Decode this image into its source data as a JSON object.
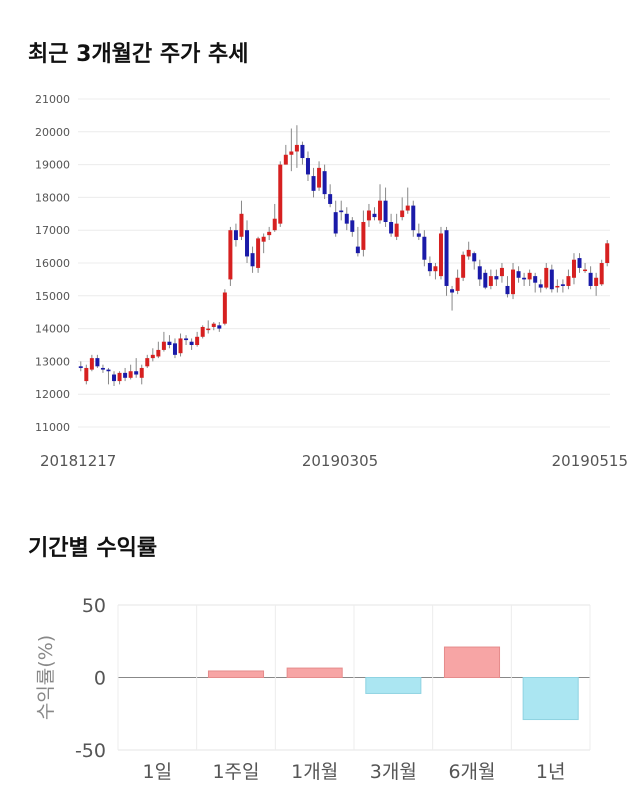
{
  "sections": {
    "price_title": "최근 3개월간 주가 추세",
    "returns_title": "기간별 수익률"
  },
  "chart_data": [
    {
      "type": "candlestick",
      "title": "최근 3개월간 주가 추세",
      "ylim": [
        11000,
        21000
      ],
      "y_ticks": [
        11000,
        12000,
        13000,
        14000,
        15000,
        16000,
        17000,
        18000,
        19000,
        20000,
        21000
      ],
      "x_labels": [
        "20181217",
        "20190305",
        "20190515"
      ],
      "grid": true,
      "colors": {
        "up": "#d62020",
        "down": "#1a1aa8",
        "wick": "#888888"
      },
      "candles": [
        [
          12850,
          12800,
          13000,
          12700
        ],
        [
          12400,
          12800,
          12900,
          12300
        ],
        [
          12750,
          13100,
          13200,
          12700
        ],
        [
          13100,
          12850,
          13200,
          12800
        ],
        [
          12800,
          12750,
          12900,
          12650
        ],
        [
          12750,
          12700,
          12800,
          12300
        ],
        [
          12600,
          12400,
          12700,
          12250
        ],
        [
          12400,
          12650,
          12700,
          12300
        ],
        [
          12650,
          12500,
          12800,
          12400
        ],
        [
          12500,
          12700,
          12900,
          12450
        ],
        [
          12700,
          12600,
          13100,
          12500
        ],
        [
          12500,
          12800,
          12900,
          12300
        ],
        [
          12850,
          13100,
          13200,
          12800
        ],
        [
          13100,
          13200,
          13400,
          13000
        ],
        [
          13150,
          13350,
          13600,
          13100
        ],
        [
          13350,
          13600,
          13900,
          13300
        ],
        [
          13600,
          13500,
          13800,
          13400
        ],
        [
          13550,
          13200,
          13700,
          13100
        ],
        [
          13250,
          13700,
          13850,
          13150
        ],
        [
          13700,
          13650,
          13800,
          13500
        ],
        [
          13600,
          13500,
          13700,
          13350
        ],
        [
          13500,
          13750,
          13900,
          13450
        ],
        [
          13750,
          14050,
          14100,
          13700
        ],
        [
          14000,
          14000,
          14250,
          13850
        ],
        [
          14050,
          14150,
          14200,
          13950
        ],
        [
          14100,
          14000,
          14200,
          13900
        ],
        [
          14150,
          15100,
          15200,
          14100
        ],
        [
          15500,
          17000,
          17100,
          15300
        ],
        [
          17000,
          16700,
          17200,
          16500
        ],
        [
          16800,
          17500,
          17900,
          16700
        ],
        [
          17000,
          16200,
          17300,
          16000
        ],
        [
          16300,
          15900,
          16500,
          15700
        ],
        [
          15850,
          16750,
          16800,
          15700
        ],
        [
          16650,
          16800,
          16900,
          16300
        ],
        [
          16850,
          16950,
          17100,
          16700
        ],
        [
          17000,
          17350,
          17800,
          16950
        ],
        [
          17200,
          19000,
          19100,
          17100
        ],
        [
          19000,
          19300,
          19600,
          19000
        ],
        [
          19300,
          19400,
          20100,
          18800
        ],
        [
          19400,
          19600,
          20200,
          18900
        ],
        [
          19600,
          19200,
          19700,
          19000
        ],
        [
          19200,
          18700,
          19400,
          18500
        ],
        [
          18650,
          18200,
          18900,
          18000
        ],
        [
          18300,
          18900,
          19100,
          18200
        ],
        [
          18800,
          18100,
          19000,
          17950
        ],
        [
          18100,
          17800,
          18400,
          17700
        ],
        [
          17550,
          16900,
          17900,
          16800
        ],
        [
          17600,
          17550,
          17900,
          17300
        ],
        [
          17500,
          17200,
          17700,
          17000
        ],
        [
          17300,
          16950,
          17400,
          16800
        ],
        [
          16500,
          16300,
          17100,
          16200
        ],
        [
          16400,
          17250,
          17600,
          16200
        ],
        [
          17300,
          17600,
          17800,
          17100
        ],
        [
          17500,
          17400,
          17700,
          17300
        ],
        [
          17300,
          17900,
          18400,
          17200
        ],
        [
          17900,
          17250,
          18300,
          17100
        ],
        [
          17250,
          16900,
          17500,
          16800
        ],
        [
          16800,
          17200,
          17500,
          16700
        ],
        [
          17400,
          17600,
          18000,
          17300
        ],
        [
          17600,
          17750,
          18300,
          17500
        ],
        [
          17750,
          17000,
          17900,
          16800
        ],
        [
          16900,
          16800,
          17200,
          16700
        ],
        [
          16800,
          16100,
          17000,
          15900
        ],
        [
          16000,
          15750,
          16200,
          15600
        ],
        [
          15750,
          15900,
          16000,
          15500
        ],
        [
          15600,
          16900,
          17100,
          15500
        ],
        [
          17000,
          15300,
          17100,
          15000
        ],
        [
          15200,
          15100,
          15300,
          14550
        ],
        [
          15150,
          15550,
          15800,
          15050
        ],
        [
          15550,
          16250,
          16350,
          15450
        ],
        [
          16200,
          16400,
          16650,
          16100
        ],
        [
          16300,
          16050,
          16350,
          15800
        ],
        [
          15900,
          15500,
          16100,
          15300
        ],
        [
          15700,
          15250,
          15800,
          15200
        ],
        [
          15300,
          15600,
          15800,
          15200
        ],
        [
          15600,
          15500,
          15800,
          15300
        ],
        [
          15600,
          15850,
          16000,
          15400
        ],
        [
          15300,
          15050,
          15600,
          14950
        ],
        [
          15050,
          15800,
          16000,
          14900
        ],
        [
          15750,
          15550,
          15900,
          15400
        ],
        [
          15550,
          15500,
          15700,
          15300
        ],
        [
          15500,
          15700,
          15800,
          15300
        ],
        [
          15600,
          15400,
          15700,
          15100
        ],
        [
          15350,
          15250,
          15500,
          15100
        ],
        [
          15250,
          15850,
          16000,
          15200
        ],
        [
          15800,
          15200,
          15950,
          15100
        ],
        [
          15300,
          15300,
          15500,
          15100
        ],
        [
          15350,
          15300,
          15500,
          15100
        ],
        [
          15300,
          15600,
          15800,
          15200
        ],
        [
          15550,
          16100,
          16300,
          15350
        ],
        [
          16150,
          15850,
          16300,
          15700
        ],
        [
          15800,
          15800,
          16000,
          15700
        ],
        [
          15700,
          15300,
          15900,
          15200
        ],
        [
          15300,
          15550,
          15700,
          15000
        ],
        [
          15350,
          16000,
          16100,
          15300
        ],
        [
          16000,
          16600,
          16700,
          15900
        ]
      ]
    },
    {
      "type": "bar",
      "title": "기간별 수익률",
      "ylabel": "수익률(%)",
      "ylim": [
        -50,
        50
      ],
      "y_ticks": [
        50,
        0,
        -50
      ],
      "categories": [
        "1일",
        "1주일",
        "1개월",
        "3개월",
        "6개월",
        "1년"
      ],
      "values": [
        0,
        4.5,
        6.5,
        -11,
        21,
        -29
      ],
      "colors": {
        "positive": "#f7a5a5",
        "negative": "#abe6f2"
      }
    }
  ]
}
